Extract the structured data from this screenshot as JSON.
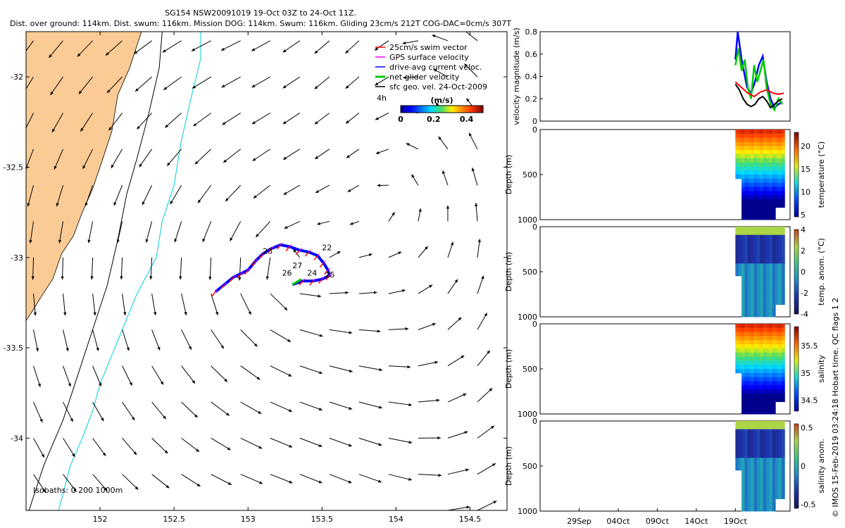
{
  "header": {
    "title_line1": "SG154 NSW20091019 19-Oct 03Z to 24-Oct 11Z.",
    "title_line2": "Dist. over ground: 114km. Dist. swum: 116km. Mission DOG: 114km. Swum: 116km. Gliding 23cm/s 212T COG-DAC=0cm/s 307T"
  },
  "colors": {
    "land": "#fbcb95",
    "isobath_200": "#000000",
    "isobath_1000": "#00ccdd",
    "track": "#0000ff",
    "swim_vector": "#ff0000",
    "gps_velocity": "#ff00ff",
    "net_velocity": "#00cc00",
    "current_line": "#000000"
  },
  "watermark": "© IMOS 15-Feb-2019 03:24:18 Hobart time. QC flags 1 2",
  "chart_data": [
    {
      "type": "map",
      "xlim": [
        151.5,
        154.75
      ],
      "ylim": [
        -34.4,
        -31.75
      ],
      "x_ticks": [
        152,
        152.5,
        153,
        153.5,
        154,
        154.5
      ],
      "x_tick_labels": [
        "152",
        "152.5",
        "153",
        "153.5",
        "154",
        "154.5"
      ],
      "y_ticks": [
        -32,
        -32.5,
        -33,
        -33.5,
        -34
      ],
      "y_tick_labels": [
        "-32",
        "-32.5",
        "-33",
        "-33.5",
        "-34"
      ],
      "legend": {
        "placement": "top-right",
        "items": [
          "25cm/s swim vector",
          "GPS surface velocity",
          "drive-avg current veloc.",
          "net glider velocity",
          "sfc geo. vel. 24-Oct-2009"
        ],
        "reference_label": "4h"
      },
      "colorbar": {
        "title": "(m/s)",
        "ticks": [
          0,
          0.2,
          0.4
        ],
        "tick_labels": [
          "0",
          "0.2",
          "0.4"
        ],
        "range": [
          0,
          0.5
        ]
      },
      "isobath_label": "Isobaths: 0   200  1000m",
      "track_day_labels": [
        "22",
        "23",
        "25",
        "26",
        "27",
        "24"
      ],
      "glider_track": [
        [
          152.78,
          -33.19
        ],
        [
          152.84,
          -33.15
        ],
        [
          152.9,
          -33.11
        ],
        [
          152.95,
          -33.09
        ],
        [
          153.0,
          -33.07
        ],
        [
          153.05,
          -33.02
        ],
        [
          153.1,
          -32.98
        ],
        [
          153.16,
          -32.95
        ],
        [
          153.22,
          -32.93
        ],
        [
          153.28,
          -32.94
        ],
        [
          153.35,
          -32.96
        ],
        [
          153.41,
          -32.97
        ],
        [
          153.47,
          -32.99
        ],
        [
          153.51,
          -33.03
        ],
        [
          153.54,
          -33.07
        ],
        [
          153.55,
          -33.1
        ],
        [
          153.5,
          -33.12
        ],
        [
          153.44,
          -33.13
        ],
        [
          153.37,
          -33.13
        ],
        [
          153.3,
          -33.15
        ]
      ],
      "current_field": {
        "lon": [
          151.55,
          151.75,
          151.95,
          152.15,
          152.35,
          152.55,
          152.75,
          152.95,
          153.15,
          153.35,
          153.55,
          153.75,
          153.95,
          154.15,
          154.35,
          154.55
        ],
        "lat": [
          -31.8,
          -32.0,
          -32.2,
          -32.4,
          -32.6,
          -32.8,
          -33.0,
          -33.2,
          -33.4,
          -33.6,
          -33.8,
          -34.0,
          -34.2,
          -34.4
        ]
      }
    },
    {
      "type": "line",
      "ylabel": "velocity magnitude (m/s)",
      "ylim": [
        0,
        0.8
      ],
      "y_ticks": [
        0,
        0.2,
        0.4,
        0.6,
        0.8
      ],
      "y_tick_labels": [
        "0",
        "0.2",
        "0.4",
        "0.6",
        "0.8"
      ],
      "x_range": [
        -25,
        7
      ],
      "series": [
        {
          "values": [
            [
              0.0,
              0.55
            ],
            [
              0.3,
              0.8
            ],
            [
              0.8,
              0.55
            ],
            [
              1.5,
              0.3
            ],
            [
              2.0,
              0.25
            ],
            [
              2.5,
              0.35
            ],
            [
              3.0,
              0.5
            ],
            [
              3.5,
              0.58
            ],
            [
              4.0,
              0.35
            ],
            [
              4.5,
              0.2
            ],
            [
              5.0,
              0.12
            ],
            [
              5.5,
              0.15
            ],
            [
              6.0,
              0.17
            ]
          ],
          "color": "#0000ff"
        },
        {
          "values": [
            [
              0.0,
              0.5
            ],
            [
              0.4,
              0.65
            ],
            [
              0.8,
              0.45
            ],
            [
              1.2,
              0.55
            ],
            [
              1.6,
              0.3
            ],
            [
              2.0,
              0.2
            ],
            [
              2.4,
              0.5
            ],
            [
              2.8,
              0.35
            ],
            [
              3.2,
              0.45
            ],
            [
              3.6,
              0.55
            ],
            [
              4.0,
              0.3
            ],
            [
              4.5,
              0.15
            ],
            [
              5.0,
              0.1
            ],
            [
              5.5,
              0.2
            ],
            [
              6.0,
              0.15
            ]
          ],
          "color": "#00cc00"
        },
        {
          "values": [
            [
              0.0,
              0.35
            ],
            [
              0.8,
              0.3
            ],
            [
              1.6,
              0.25
            ],
            [
              2.4,
              0.22
            ],
            [
              3.2,
              0.26
            ],
            [
              4.0,
              0.28
            ],
            [
              4.8,
              0.25
            ],
            [
              5.6,
              0.24
            ],
            [
              6.2,
              0.25
            ]
          ],
          "color": "#ff0000"
        },
        {
          "values": [
            [
              0.0,
              0.33
            ],
            [
              0.5,
              0.28
            ],
            [
              1.0,
              0.2
            ],
            [
              1.5,
              0.15
            ],
            [
              2.0,
              0.13
            ],
            [
              2.5,
              0.15
            ],
            [
              3.0,
              0.2
            ],
            [
              3.5,
              0.22
            ],
            [
              4.0,
              0.18
            ],
            [
              4.5,
              0.12
            ],
            [
              5.0,
              0.15
            ],
            [
              5.5,
              0.18
            ],
            [
              6.0,
              0.2
            ]
          ],
          "color": "#000000"
        }
      ]
    },
    {
      "type": "heatmap",
      "ylabel": "Depth (m)",
      "clabel": "temperature (°C)",
      "ylim": [
        1000,
        0
      ],
      "y_ticks": [
        0,
        500,
        1000
      ],
      "y_tick_labels": [
        "0",
        "500",
        "1000"
      ],
      "clim": [
        4.5,
        23
      ],
      "c_ticks": [
        5,
        10,
        15,
        20
      ],
      "c_tick_labels": [
        "5",
        "10",
        "15",
        "20"
      ]
    },
    {
      "type": "heatmap",
      "ylabel": "Depth (m)",
      "clabel": "temp. anom. (°C)",
      "ylim": [
        1000,
        0
      ],
      "y_ticks": [
        0,
        500,
        1000
      ],
      "y_tick_labels": [
        "0",
        "500",
        "1000"
      ],
      "clim": [
        -4,
        4
      ],
      "c_ticks": [
        -4,
        -2,
        0,
        2,
        4
      ],
      "c_tick_labels": [
        "-4",
        "-2",
        "0",
        "2",
        "4"
      ]
    },
    {
      "type": "heatmap",
      "ylabel": "Depth (m)",
      "clabel": "salinity",
      "ylim": [
        1000,
        0
      ],
      "y_ticks": [
        0,
        500,
        1000
      ],
      "y_tick_labels": [
        "0",
        "500",
        "1000"
      ],
      "clim": [
        34.3,
        35.85
      ],
      "c_ticks": [
        34.5,
        35,
        35.5
      ],
      "c_tick_labels": [
        "34.5",
        "35",
        "35.5"
      ]
    },
    {
      "type": "heatmap",
      "ylabel": "Depth (m)",
      "clabel": "salinity anom.",
      "ylim": [
        1000,
        0
      ],
      "y_ticks": [
        0,
        500,
        1000
      ],
      "y_tick_labels": [
        "0",
        "500",
        "1000"
      ],
      "clim": [
        -0.55,
        0.55
      ],
      "c_ticks": [
        -0.5,
        0,
        0.5
      ],
      "c_tick_labels": [
        "-0.5",
        "0",
        "0.5"
      ],
      "x_ticks": [
        -20,
        -15,
        -10,
        -5,
        0
      ],
      "x_tick_labels": [
        "29Sep",
        "04Oct",
        "09Oct",
        "14Oct",
        "19Oct"
      ],
      "x_range": [
        -25,
        7
      ]
    }
  ]
}
